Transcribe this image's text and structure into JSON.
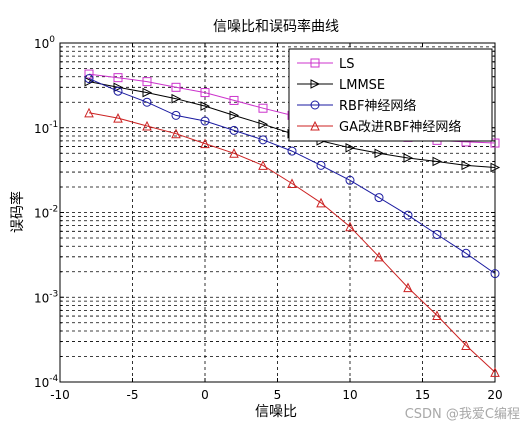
{
  "chart_data": {
    "type": "line",
    "title": "信噪比和误码率曲线",
    "xlabel": "信噪比",
    "ylabel": "误码率",
    "xlim": [
      -10,
      20
    ],
    "ylim": [
      0.0001,
      1
    ],
    "yscale": "log",
    "grid": true,
    "legend_position": "top-right",
    "x_ticks": [
      "-10",
      "-5",
      "0",
      "5",
      "10",
      "15",
      "20"
    ],
    "y_ticks": [
      {
        "base": "10",
        "exp": "-4",
        "value": 0.0001
      },
      {
        "base": "10",
        "exp": "-3",
        "value": 0.001
      },
      {
        "base": "10",
        "exp": "-2",
        "value": 0.01
      },
      {
        "base": "10",
        "exp": "-1",
        "value": 0.1
      },
      {
        "base": "10",
        "exp": "0",
        "value": 1
      }
    ],
    "x": [
      -8,
      -6,
      -4,
      -2,
      0,
      2,
      4,
      6,
      8,
      10,
      12,
      14,
      16,
      18,
      20
    ],
    "series": [
      {
        "name": "LS",
        "color": "#cc33cc",
        "marker": "square",
        "values": [
          0.43,
          0.39,
          0.35,
          0.3,
          0.26,
          0.21,
          0.17,
          0.14,
          0.115,
          0.1,
          0.085,
          0.077,
          0.071,
          0.068,
          0.066
        ]
      },
      {
        "name": "LMMSE",
        "color": "#000000",
        "marker": "triangle-right",
        "values": [
          0.35,
          0.3,
          0.26,
          0.22,
          0.18,
          0.14,
          0.11,
          0.085,
          0.07,
          0.058,
          0.05,
          0.044,
          0.04,
          0.036,
          0.034
        ]
      },
      {
        "name": "RBF神经网络",
        "color": "#1a1aa0",
        "marker": "circle",
        "values": [
          0.38,
          0.27,
          0.2,
          0.14,
          0.12,
          0.093,
          0.072,
          0.053,
          0.036,
          0.024,
          0.015,
          0.0093,
          0.0055,
          0.0033,
          0.0019
        ]
      },
      {
        "name": "GA改进RBF神经网络",
        "color": "#cc2222",
        "marker": "triangle-up",
        "values": [
          0.15,
          0.13,
          0.105,
          0.085,
          0.065,
          0.05,
          0.036,
          0.022,
          0.013,
          0.0068,
          0.003,
          0.0013,
          0.00061,
          0.00027,
          0.00013
        ]
      }
    ]
  },
  "watermark": "CSDN @我爱C编程"
}
